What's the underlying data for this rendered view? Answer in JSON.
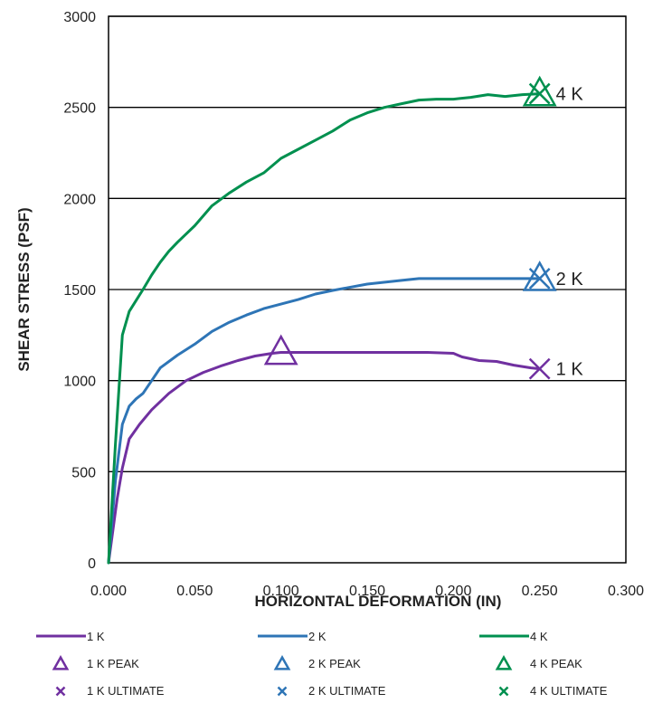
{
  "chart_data": {
    "type": "line",
    "title": "",
    "xlabel": "HORIZONTAL DEFORMATION (IN)",
    "ylabel": "SHEAR STRESS (PSF)",
    "xlim": [
      0,
      0.3
    ],
    "ylim": [
      0,
      3000
    ],
    "x_ticks": [
      "0.000",
      "0.050",
      "0.100",
      "0.150",
      "0.200",
      "0.250",
      "0.300"
    ],
    "y_ticks": [
      "0",
      "500",
      "1000",
      "1500",
      "2000",
      "2500",
      "3000"
    ],
    "grid": "horizontal",
    "legend_position": "bottom",
    "series": [
      {
        "name": "1 K",
        "color": "#7030a0",
        "end_label": "1 K",
        "x": [
          0,
          0.005,
          0.008,
          0.012,
          0.018,
          0.025,
          0.035,
          0.045,
          0.055,
          0.065,
          0.075,
          0.085,
          0.095,
          0.1,
          0.12,
          0.15,
          0.185,
          0.2,
          0.205,
          0.215,
          0.225,
          0.235,
          0.245,
          0.25
        ],
        "y": [
          0,
          350,
          520,
          680,
          760,
          840,
          930,
          1000,
          1045,
          1080,
          1110,
          1135,
          1150,
          1155,
          1155,
          1155,
          1155,
          1150,
          1130,
          1110,
          1105,
          1085,
          1070,
          1065
        ]
      },
      {
        "name": "2 K",
        "color": "#2e75b6",
        "end_label": "2 K",
        "x": [
          0,
          0.004,
          0.008,
          0.012,
          0.016,
          0.02,
          0.025,
          0.03,
          0.04,
          0.05,
          0.06,
          0.07,
          0.08,
          0.09,
          0.1,
          0.11,
          0.12,
          0.13,
          0.15,
          0.17,
          0.18,
          0.2,
          0.25
        ],
        "y": [
          0,
          450,
          760,
          860,
          900,
          930,
          1000,
          1070,
          1140,
          1200,
          1270,
          1320,
          1360,
          1395,
          1420,
          1445,
          1475,
          1495,
          1530,
          1550,
          1560,
          1560,
          1560
        ]
      },
      {
        "name": "4 K",
        "color": "#00904f",
        "end_label": "4 K",
        "x": [
          0,
          0.004,
          0.008,
          0.012,
          0.016,
          0.02,
          0.025,
          0.03,
          0.035,
          0.04,
          0.05,
          0.06,
          0.07,
          0.08,
          0.09,
          0.1,
          0.11,
          0.12,
          0.13,
          0.14,
          0.15,
          0.16,
          0.17,
          0.18,
          0.19,
          0.2,
          0.21,
          0.22,
          0.23,
          0.24,
          0.25
        ],
        "y": [
          0,
          650,
          1250,
          1380,
          1440,
          1500,
          1580,
          1650,
          1710,
          1760,
          1850,
          1960,
          2030,
          2090,
          2140,
          2220,
          2270,
          2320,
          2370,
          2430,
          2470,
          2500,
          2520,
          2540,
          2545,
          2545,
          2555,
          2570,
          2560,
          2570,
          2575
        ]
      }
    ],
    "peak_points": [
      {
        "name": "1 K PEAK",
        "x": 0.1,
        "y": 1155,
        "color": "#7030a0",
        "marker": "triangle"
      },
      {
        "name": "2 K PEAK",
        "x": 0.25,
        "y": 1560,
        "color": "#2e75b6",
        "marker": "triangle"
      },
      {
        "name": "4 K PEAK",
        "x": 0.25,
        "y": 2575,
        "color": "#00904f",
        "marker": "triangle"
      }
    ],
    "ultimate_points": [
      {
        "name": "1 K ULTIMATE",
        "x": 0.25,
        "y": 1065,
        "color": "#7030a0",
        "marker": "x"
      },
      {
        "name": "2 K ULTIMATE",
        "x": 0.25,
        "y": 1560,
        "color": "#2e75b6",
        "marker": "x"
      },
      {
        "name": "4 K ULTIMATE",
        "x": 0.25,
        "y": 2575,
        "color": "#00904f",
        "marker": "x"
      }
    ]
  }
}
